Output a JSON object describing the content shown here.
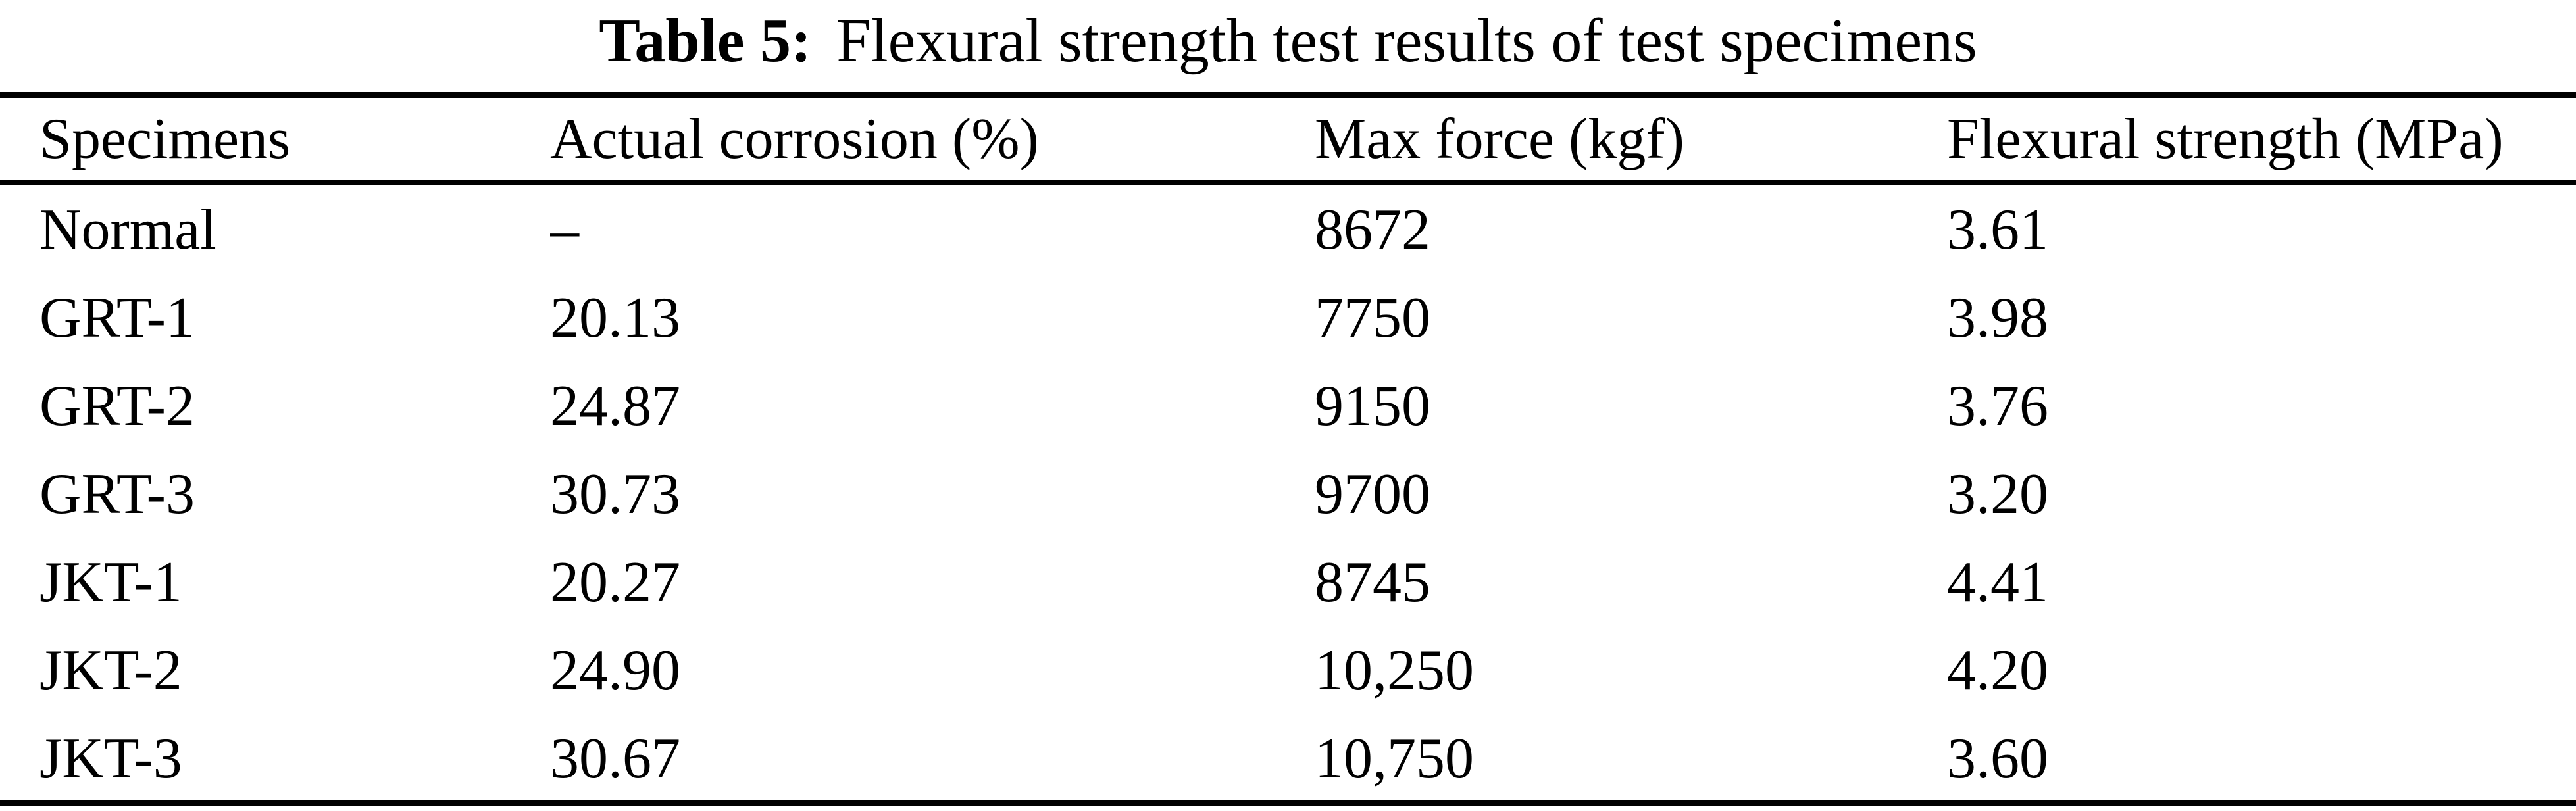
{
  "caption": {
    "label": "Table 5:",
    "title": "Flexural strength test results of test specimens"
  },
  "table": {
    "headers": [
      "Specimens",
      "Actual corrosion (%)",
      "Max force (kgf)",
      "Flexural strength (MPa)"
    ],
    "rows": [
      [
        "Normal",
        "–",
        "8672",
        "3.61"
      ],
      [
        "GRT-1",
        "20.13",
        "7750",
        "3.98"
      ],
      [
        "GRT-2",
        "24.87",
        "9150",
        "3.76"
      ],
      [
        "GRT-3",
        "30.73",
        "9700",
        "3.20"
      ],
      [
        "JKT-1",
        "20.27",
        "8745",
        "4.41"
      ],
      [
        "JKT-2",
        "24.90",
        "10,250",
        "4.20"
      ],
      [
        "JKT-3",
        "30.67",
        "10,750",
        "3.60"
      ]
    ]
  },
  "chart_data": {
    "type": "table",
    "title": "Table 5: Flexural strength test results of test specimens",
    "columns": [
      "Specimens",
      "Actual corrosion (%)",
      "Max force (kgf)",
      "Flexural strength (MPa)"
    ],
    "rows": [
      [
        "Normal",
        null,
        8672,
        3.61
      ],
      [
        "GRT-1",
        20.13,
        7750,
        3.98
      ],
      [
        "GRT-2",
        24.87,
        9150,
        3.76
      ],
      [
        "GRT-3",
        30.73,
        9700,
        3.2
      ],
      [
        "JKT-1",
        20.27,
        8745,
        4.41
      ],
      [
        "JKT-2",
        24.9,
        10250,
        4.2
      ],
      [
        "JKT-3",
        30.67,
        10750,
        3.6
      ]
    ]
  },
  "colors": {
    "text": "#000000",
    "background": "#ffffff"
  }
}
